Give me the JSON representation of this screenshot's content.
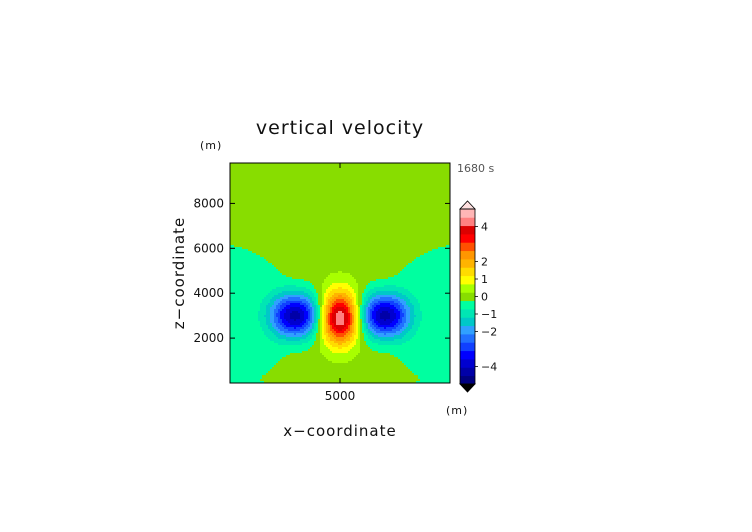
{
  "chart_data": {
    "type": "heatmap",
    "title": "vertical velocity",
    "xlabel": "x−coordinate",
    "ylabel": "z−coordinate",
    "x_unit": "(m)",
    "y_unit": "(m)",
    "time_label": "1680 s",
    "xlim": [
      0,
      10000
    ],
    "ylim": [
      0,
      9800
    ],
    "x_ticks": [
      {
        "value": 5000,
        "label": "5000"
      }
    ],
    "y_ticks": [
      {
        "value": 2000,
        "label": "2000"
      },
      {
        "value": 4000,
        "label": "4000"
      },
      {
        "value": 6000,
        "label": "6000"
      },
      {
        "value": 8000,
        "label": "8000"
      }
    ],
    "colorbar": {
      "min": -5,
      "max": 5,
      "step": 0.5,
      "labels": [
        {
          "value": 4,
          "label": "4"
        },
        {
          "value": 2,
          "label": "2"
        },
        {
          "value": 1,
          "label": "1"
        },
        {
          "value": 0,
          "label": "0"
        },
        {
          "value": -1,
          "label": "−1"
        },
        {
          "value": -2,
          "label": "−2"
        },
        {
          "value": -4,
          "label": "−4"
        }
      ],
      "colors": [
        "#000080",
        "#0000a8",
        "#0000d0",
        "#0000ff",
        "#1040ff",
        "#2070ff",
        "#30a0ff",
        "#00c8c8",
        "#00e6b4",
        "#00ffa0",
        "#88dd00",
        "#a8ff00",
        "#ffff00",
        "#ffdc00",
        "#ffb400",
        "#ff9600",
        "#ff5000",
        "#ff0000",
        "#dc0000",
        "#ff8080",
        "#ffb6b6"
      ],
      "top_arrow_color": "#ffe0e0",
      "bottom_arrow_color": "#000000"
    },
    "features": [
      {
        "kind": "updraft",
        "x": 5000,
        "z": 2900,
        "peak": 5.0
      },
      {
        "kind": "downdraft",
        "x": 3000,
        "z": 3000,
        "peak": -4.5
      },
      {
        "kind": "downdraft",
        "x": 7000,
        "z": 3000,
        "peak": -4.5
      },
      {
        "kind": "ascent_column",
        "x_from": 2500,
        "x_to": 7500,
        "z_from": 0,
        "z_to": 9800,
        "value": 0.3
      }
    ]
  }
}
